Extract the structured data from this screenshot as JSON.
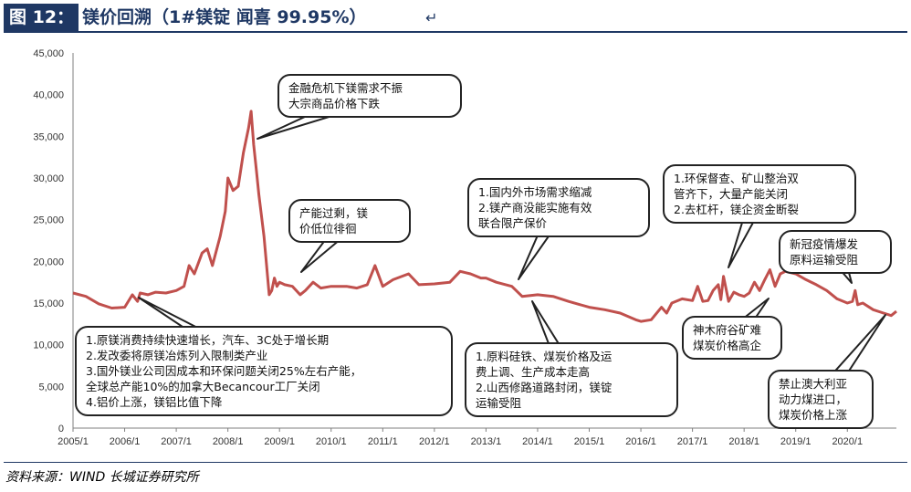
{
  "header": {
    "tag": "图 12：",
    "title": "镁价回溯（1#镁锭 闻喜 99.95%）",
    "return_icon": "return-arrow-icon"
  },
  "footer": {
    "source": "资料来源：WIND 长城证券研究所"
  },
  "annotations": [
    {
      "id": "a1",
      "lines": [
        "金融危机下镁需求不振",
        "大宗商品价格下跌"
      ]
    },
    {
      "id": "a2",
      "lines": [
        "产能过剩，镁",
        "价低位徘徊"
      ]
    },
    {
      "id": "a3",
      "lines": [
        "1.国内外市场需求缩减",
        "2.镁产商没能实施有效",
        "联合限产保价"
      ]
    },
    {
      "id": "a4",
      "lines": [
        "1.环保督查、矿山整治双",
        "管齐下，大量产能关闭",
        "2.去杠杆，镁企资金断裂"
      ]
    },
    {
      "id": "a5",
      "lines": [
        "新冠疫情爆发",
        "原料运输受阻"
      ]
    },
    {
      "id": "a6",
      "lines": [
        "1.原镁消费持续快速增长，汽车、3C处于增长期",
        "2.发改委将原镁冶炼列入限制类产业",
        "3.国外镁业公司因成本和环保问题关闭25%左右产能，",
        "全球总产能10%的加拿大Becancour工厂关闭",
        "4.铝价上涨，镁铝比值下降"
      ]
    },
    {
      "id": "a7",
      "lines": [
        "1.原料硅铁、煤炭价格及运",
        "费上调、生产成本走高",
        "2.山西修路道路封闭，镁锭",
        "运输受阻"
      ]
    },
    {
      "id": "a8",
      "lines": [
        "神木府谷矿难",
        "煤炭价格高企"
      ]
    },
    {
      "id": "a9",
      "lines": [
        "禁止澳大利亚",
        "动力煤进口，",
        "煤炭价格上涨"
      ]
    }
  ],
  "chart_data": {
    "type": "line",
    "color": "#c0504d",
    "x_tick_labels": [
      "2005/1",
      "2006/1",
      "2007/1",
      "2008/1",
      "2009/1",
      "2010/1",
      "2011/1",
      "2012/1",
      "2013/1",
      "2014/1",
      "2015/1",
      "2016/1",
      "2017/1",
      "2018/1",
      "2019/1",
      "2020/1"
    ],
    "y_tick_labels": [
      "0",
      "5,000",
      "10,000",
      "15,000",
      "20,000",
      "25,000",
      "30,000",
      "35,000",
      "40,000",
      "45,000"
    ],
    "ylim": [
      0,
      45000
    ],
    "xlim": [
      2005.0,
      2020.95
    ],
    "series": [
      {
        "x": [
          2005.0,
          2005.25,
          2005.5,
          2005.75,
          2006.0,
          2006.15,
          2006.25,
          2006.3,
          2006.45,
          2006.6,
          2006.8,
          2007.0,
          2007.15,
          2007.25,
          2007.35,
          2007.5,
          2007.6,
          2007.7,
          2007.85,
          2007.95,
          2008.0,
          2008.1,
          2008.2,
          2008.3,
          2008.4,
          2008.45,
          2008.5,
          2008.55,
          2008.6,
          2008.7,
          2008.8,
          2008.85,
          2008.9,
          2008.95,
          2009.0,
          2009.1,
          2009.25,
          2009.4,
          2009.5,
          2009.65,
          2009.8,
          2010.0,
          2010.3,
          2010.5,
          2010.7,
          2010.85,
          2011.0,
          2011.2,
          2011.5,
          2011.7,
          2012.0,
          2012.3,
          2012.5,
          2012.7,
          2012.9,
          2013.0,
          2013.2,
          2013.5,
          2013.7,
          2014.0,
          2014.3,
          2014.6,
          2015.0,
          2015.3,
          2015.6,
          2015.9,
          2016.0,
          2016.2,
          2016.4,
          2016.5,
          2016.6,
          2016.8,
          2017.0,
          2017.1,
          2017.2,
          2017.3,
          2017.4,
          2017.5,
          2017.55,
          2017.6,
          2017.7,
          2017.8,
          2017.9,
          2018.0,
          2018.1,
          2018.2,
          2018.3,
          2018.4,
          2018.5,
          2018.6,
          2018.7,
          2018.8,
          2019.0,
          2019.2,
          2019.4,
          2019.6,
          2019.8,
          2020.0,
          2020.1,
          2020.15,
          2020.2,
          2020.3,
          2020.5,
          2020.7,
          2020.85,
          2020.95
        ],
        "y": [
          16200,
          15800,
          14900,
          14400,
          14500,
          16000,
          15200,
          16200,
          16000,
          16300,
          16200,
          16500,
          17000,
          19500,
          18500,
          21000,
          21500,
          19500,
          23000,
          26000,
          30000,
          28500,
          29000,
          33000,
          36000,
          38000,
          34000,
          31000,
          28000,
          23000,
          16000,
          16500,
          18000,
          17000,
          17500,
          17200,
          17000,
          16000,
          16500,
          17500,
          16800,
          17000,
          17000,
          16800,
          17200,
          19500,
          17000,
          17800,
          18500,
          17200,
          17300,
          17500,
          18800,
          18500,
          18000,
          18000,
          17500,
          17000,
          15800,
          16000,
          15800,
          15200,
          14500,
          14200,
          13800,
          13000,
          12800,
          13000,
          14500,
          13800,
          15000,
          15500,
          15300,
          17000,
          15200,
          15300,
          16500,
          17200,
          15400,
          18200,
          15200,
          16300,
          16000,
          15800,
          16200,
          17500,
          16500,
          17800,
          19000,
          17000,
          18500,
          18800,
          18500,
          17800,
          17200,
          16500,
          15500,
          15000,
          15200,
          16500,
          14800,
          15000,
          14200,
          13800,
          13500,
          14000
        ]
      }
    ]
  }
}
